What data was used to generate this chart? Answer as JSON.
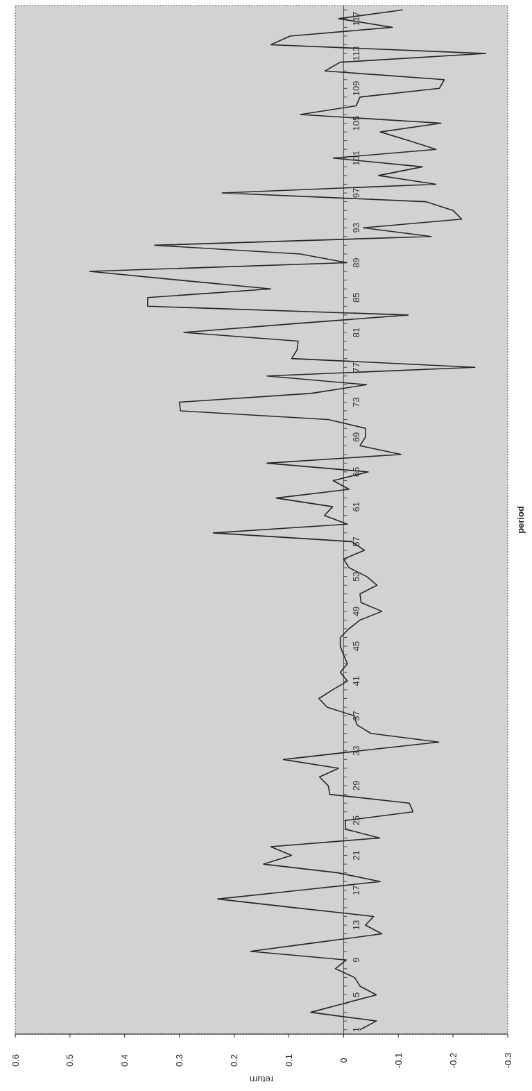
{
  "chart_data": {
    "type": "line",
    "orientation": "horizontal",
    "xlabel": "return",
    "ylabel": "period",
    "categories": [
      null,
      "117",
      null,
      null,
      null,
      "113",
      null,
      null,
      null,
      "109",
      null,
      null,
      null,
      "105",
      null,
      null,
      null,
      "101",
      null,
      null,
      null,
      "97",
      null,
      null,
      null,
      "93",
      null,
      null,
      null,
      "89",
      null,
      null,
      null,
      "85",
      null,
      null,
      null,
      "81",
      null,
      null,
      null,
      "77",
      null,
      null,
      null,
      "73",
      null,
      null,
      null,
      "69",
      null,
      null,
      null,
      "65",
      null,
      null,
      null,
      "61",
      null,
      null,
      null,
      "57",
      null,
      null,
      null,
      "53",
      null,
      null,
      null,
      "49",
      null,
      null,
      null,
      "45",
      null,
      null,
      null,
      "41",
      null,
      null,
      null,
      "37",
      null,
      null,
      null,
      "33",
      null,
      null,
      null,
      "29",
      null,
      null,
      null,
      "25",
      null,
      null,
      null,
      "21",
      null,
      null,
      null,
      "17",
      null,
      null,
      null,
      "13",
      null,
      null,
      null,
      "9",
      null,
      null,
      null,
      "5",
      null,
      null,
      null,
      "1"
    ],
    "series": [
      {
        "color": "#262626",
        "values": [
          -0.108,
          0.009,
          -0.089,
          0.098,
          0.133,
          -0.26,
          0.006,
          0.034,
          -0.184,
          -0.175,
          -0.03,
          -0.023,
          0.079,
          -0.178,
          -0.067,
          -0.12,
          -0.169,
          0.019,
          -0.144,
          -0.064,
          -0.169,
          0.222,
          -0.15,
          -0.2,
          -0.216,
          -0.036,
          -0.16,
          0.345,
          0.079,
          -0.006,
          0.464,
          0.3,
          0.133,
          0.358,
          0.358,
          -0.118,
          0.09,
          0.292,
          0.083,
          0.085,
          0.095,
          -0.24,
          0.14,
          -0.042,
          0.06,
          0.3,
          0.298,
          0.028,
          -0.04,
          -0.04,
          -0.03,
          -0.105,
          0.14,
          -0.045,
          0.019,
          -0.01,
          0.123,
          0.02,
          0.035,
          -0.007,
          0.238,
          -0.015,
          -0.038,
          0.0,
          -0.01,
          -0.042,
          -0.061,
          -0.03,
          -0.032,
          -0.07,
          -0.03,
          -0.01,
          0.006,
          0.006,
          0.0,
          -0.007,
          0.006,
          -0.007,
          0.02,
          0.045,
          0.03,
          -0.02,
          -0.024,
          -0.05,
          -0.174,
          -0.03,
          0.11,
          0.009,
          0.044,
          0.028,
          0.025,
          -0.12,
          -0.127,
          -0.003,
          -0.004,
          -0.066,
          0.133,
          0.095,
          0.146,
          0.01,
          -0.067,
          0.08,
          0.23,
          0.09,
          -0.055,
          -0.04,
          -0.07,
          0.05,
          0.17,
          -0.005,
          0.015,
          -0.02,
          -0.03,
          -0.06,
          0.0,
          0.06,
          -0.06,
          -0.03
        ]
      }
    ],
    "xlim": [
      0.6,
      -0.3
    ],
    "xticks": [
      0.6,
      0.5,
      0.4,
      0.3,
      0.2,
      0.1,
      0,
      -0.1,
      -0.2,
      -0.3
    ],
    "grid": false
  }
}
